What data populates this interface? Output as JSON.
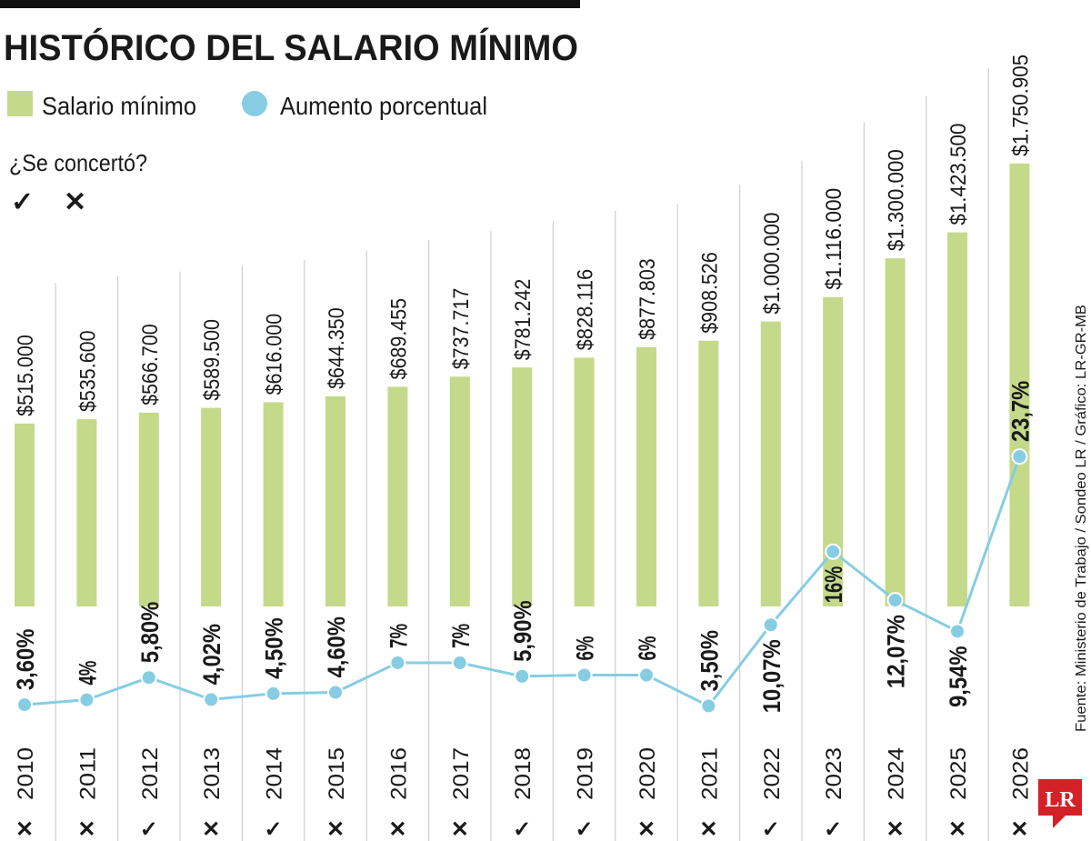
{
  "chart_data": {
    "type": "bar-line",
    "title": "HISTÓRICO DEL SALARIO MÍNIMO",
    "categories": [
      "2010",
      "2011",
      "2012",
      "2013",
      "2014",
      "2015",
      "2016",
      "2017",
      "2018",
      "2019",
      "2020",
      "2021",
      "2022",
      "2023",
      "2024",
      "2025",
      "2026"
    ],
    "series": [
      {
        "name": "Salario mínimo",
        "color": "#c5d98a",
        "type": "bar",
        "values": [
          515000,
          535600,
          566700,
          589500,
          616000,
          644350,
          689455,
          737717,
          781242,
          828116,
          877803,
          908526,
          1000000,
          1116000,
          1300000,
          1423500,
          1750905
        ],
        "value_labels": [
          "$515.000",
          "$535.600",
          "$566.700",
          "$589.500",
          "$616.000",
          "$644.350",
          "$689.455",
          "$737.717",
          "$781.242",
          "$828.116",
          "$877.803",
          "$908.526",
          "$1.000.000",
          "$1.116.000",
          "$1.300.000",
          "$1.423.500",
          "$1.750.905"
        ]
      },
      {
        "name": "Aumento porcentual",
        "color": "#86cde3",
        "type": "line",
        "values": [
          3.6,
          4,
          5.8,
          4.02,
          4.5,
          4.6,
          7,
          7,
          5.9,
          6,
          6,
          3.5,
          10.07,
          16,
          12.07,
          9.54,
          23.7
        ],
        "value_labels": [
          "3,60%",
          "4%",
          "5,80%",
          "4,02%",
          "4,50%",
          "4,60%",
          "7%",
          "7%",
          "5,90%",
          "6%",
          "6%",
          "3,50%",
          "10,07%",
          "16%",
          "12,07%",
          "9,54%",
          "23,7%"
        ]
      }
    ],
    "agreement": {
      "label": "¿Se concertó?",
      "symbols": [
        "✓",
        "✕"
      ],
      "values": [
        "✕",
        "✕",
        "✓",
        "✕",
        "✓",
        "✕",
        "✕",
        "✕",
        "✓",
        "✓",
        "✕",
        "✕",
        "✓",
        "✓",
        "✕",
        "✕",
        "✕"
      ]
    },
    "source": "Fuente: Ministerio de Trabajo / Sondeo LR / Gráfico: LR-GR-MB",
    "logo": "LR"
  }
}
